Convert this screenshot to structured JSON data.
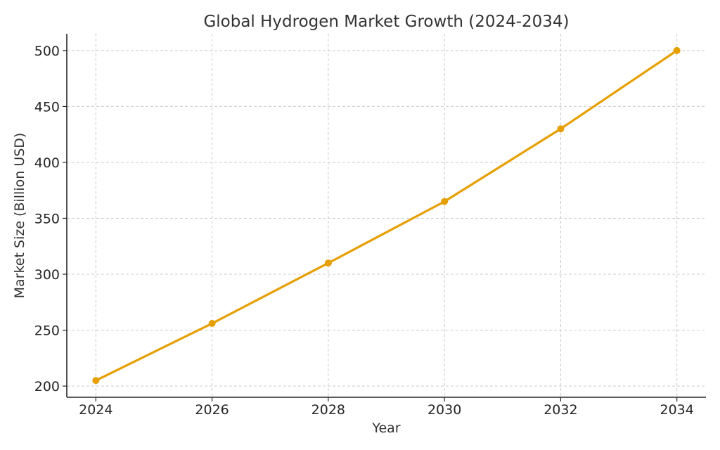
{
  "chart_data": {
    "type": "line",
    "title": "Global Hydrogen Market Growth (2024-2034)",
    "xlabel": "Year",
    "ylabel": "Market Size (Billion USD)",
    "x": [
      2024,
      2026,
      2028,
      2030,
      2032,
      2034
    ],
    "series": [
      {
        "values": [
          205,
          256,
          310,
          365,
          430,
          500
        ],
        "color": "#e69f00"
      }
    ],
    "xticks": [
      2024,
      2026,
      2028,
      2030,
      2032,
      2034
    ],
    "yticks": [
      200,
      250,
      300,
      350,
      400,
      450,
      500
    ],
    "xlim": [
      2023.5,
      2034.5
    ],
    "ylim": [
      190,
      515
    ],
    "grid": true,
    "grid_color": "#cccccc",
    "axis_color": "#262626",
    "text_color": "#333333",
    "line_color": "#e69f00"
  }
}
